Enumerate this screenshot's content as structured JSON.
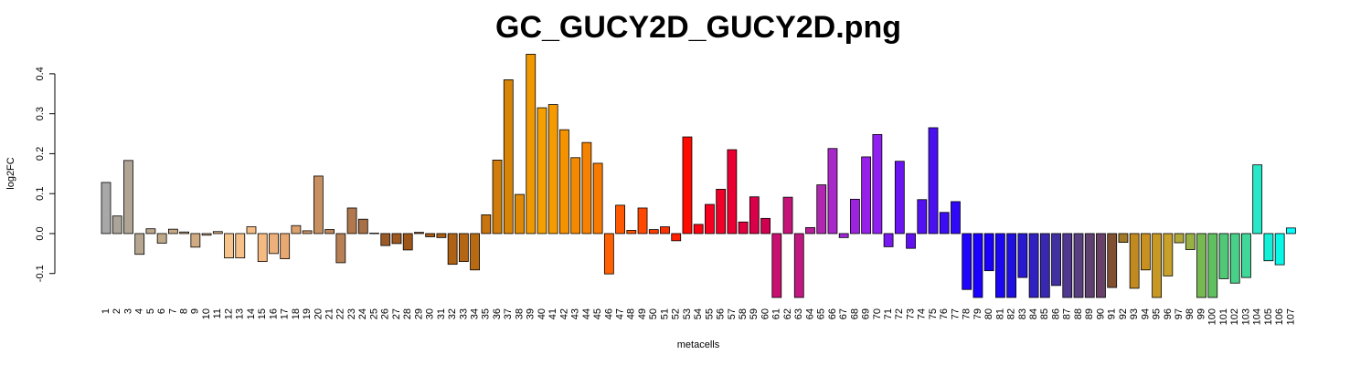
{
  "chart_data": {
    "type": "bar",
    "title": "GC_GUCY2D_GUCY2D.png",
    "x_label": "metacells",
    "y_label": "log2FC",
    "categories": [
      "1",
      "2",
      "3",
      "4",
      "5",
      "6",
      "7",
      "8",
      "9",
      "10",
      "11",
      "12",
      "13",
      "14",
      "15",
      "16",
      "17",
      "18",
      "19",
      "20",
      "21",
      "22",
      "23",
      "24",
      "25",
      "26",
      "27",
      "28",
      "29",
      "30",
      "31",
      "32",
      "33",
      "34",
      "35",
      "36",
      "37",
      "38",
      "39",
      "40",
      "41",
      "42",
      "43",
      "44",
      "45",
      "46",
      "47",
      "48",
      "49",
      "50",
      "51",
      "52",
      "53",
      "54",
      "55",
      "56",
      "57",
      "58",
      "59",
      "60",
      "61",
      "62",
      "63",
      "64",
      "65",
      "66",
      "67",
      "68",
      "69",
      "70",
      "71",
      "72",
      "73",
      "74",
      "75",
      "76",
      "77",
      "78",
      "79",
      "80",
      "81",
      "82",
      "83",
      "84",
      "85",
      "86",
      "87",
      "88",
      "89",
      "90",
      "91",
      "92",
      "93",
      "94",
      "95",
      "96",
      "97",
      "98",
      "99",
      "100",
      "101",
      "102",
      "103",
      "104",
      "105",
      "106",
      "107"
    ],
    "values": [
      0.128,
      0.044,
      0.183,
      -0.052,
      0.012,
      -0.024,
      0.011,
      0.004,
      -0.034,
      -0.004,
      0.005,
      -0.061,
      -0.061,
      0.017,
      -0.07,
      -0.05,
      -0.063,
      0.02,
      0.007,
      0.144,
      0.01,
      -0.073,
      0.064,
      0.036,
      0.001,
      -0.03,
      -0.025,
      -0.041,
      0.003,
      -0.008,
      -0.01,
      -0.077,
      -0.07,
      -0.091,
      0.047,
      0.184,
      0.385,
      0.098,
      0.449,
      0.315,
      0.323,
      0.26,
      0.19,
      0.228,
      0.176,
      -0.101,
      0.071,
      0.008,
      0.064,
      0.01,
      0.017,
      -0.018,
      0.242,
      0.023,
      0.073,
      0.111,
      0.21,
      0.029,
      0.092,
      0.038,
      -0.16,
      0.091,
      -0.16,
      0.015,
      0.122,
      0.213,
      -0.01,
      0.086,
      0.192,
      0.248,
      -0.033,
      0.181,
      -0.037,
      0.085,
      0.265,
      0.053,
      0.08,
      -0.14,
      -0.16,
      -0.093,
      -0.16,
      -0.16,
      -0.11,
      -0.16,
      -0.16,
      -0.13,
      -0.16,
      -0.16,
      -0.16,
      -0.16,
      -0.135,
      -0.022,
      -0.137,
      -0.091,
      -0.16,
      -0.106,
      -0.023,
      -0.04,
      -0.16,
      -0.16,
      -0.113,
      -0.124,
      -0.11,
      0.172,
      -0.068,
      -0.078,
      0.014
    ],
    "colors": [
      "#a8a8a8",
      "#aba498",
      "#b0a594",
      "#b5a690",
      "#baa78c",
      "#bfa888",
      "#c4a984",
      "#c9aa80",
      "#ceab80",
      "#d3ad82",
      "#d8b084",
      "#f5c38c",
      "#f5c08a",
      "#f5bd86",
      "#f5ba82",
      "#eeb07a",
      "#e8a872",
      "#dca06c",
      "#d09866",
      "#c89060",
      "#c0885a",
      "#b88054",
      "#b0784c",
      "#a87046",
      "#a06840",
      "#9a5a28",
      "#9c5820",
      "#9e5618",
      "#a05614",
      "#a65a14",
      "#ac5e14",
      "#b06214",
      "#b46614",
      "#b86a12",
      "#c87410",
      "#d07c0a",
      "#d88406",
      "#e08a04",
      "#f09800",
      "#f5a000",
      "#f59a00",
      "#f59200",
      "#f58a00",
      "#f58200",
      "#f87a00",
      "#ff6000",
      "#ff5800",
      "#ff5000",
      "#ff4800",
      "#ff3c00",
      "#ff3000",
      "#ff2000",
      "#ff0a00",
      "#ff0010",
      "#f80020",
      "#f00028",
      "#e80030",
      "#e00040",
      "#d80048",
      "#d00050",
      "#c81070",
      "#c41478",
      "#c01880",
      "#b82098",
      "#b028b0",
      "#a828c8",
      "#a028d8",
      "#9c24e0",
      "#9620e8",
      "#9020f0",
      "#7818f0",
      "#6a14f0",
      "#6010f0",
      "#5410f0",
      "#4a10f0",
      "#3c0cf4",
      "#3008f8",
      "#2004fc",
      "#1a00ff",
      "#1a00f8",
      "#1c08f0",
      "#2010e0",
      "#2818d0",
      "#3020c0",
      "#3828b0",
      "#4030a0",
      "#503890",
      "#584080",
      "#604070",
      "#684068",
      "#805030",
      "#a07828",
      "#c08a20",
      "#c89020",
      "#c89824",
      "#c8a02a",
      "#b0a838",
      "#98b044",
      "#78b850",
      "#60c060",
      "#50c878",
      "#48d088",
      "#40d898",
      "#28e8c8",
      "#14f0d8",
      "#08f8e8",
      "#00ffff"
    ],
    "ylim": [
      -0.16,
      0.45
    ],
    "yticks": [
      -0.1,
      {
        "value": 0,
        "label": "0.0"
      },
      0.1,
      0.2,
      0.3,
      0.4
    ]
  }
}
